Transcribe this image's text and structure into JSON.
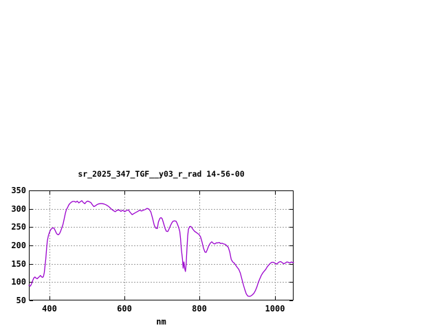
{
  "window": {
    "background": "#ffffff"
  },
  "chart_data": {
    "type": "line",
    "title": "sr_2025_347_TGF__y03_r_rad 14-56-00",
    "xlabel": "nm",
    "ylabel": "",
    "xlim": [
      345,
      1050
    ],
    "ylim": [
      50,
      350
    ],
    "xticks": [
      400,
      600,
      800,
      1000
    ],
    "yticks": [
      50,
      100,
      150,
      200,
      250,
      300,
      350
    ],
    "grid": true,
    "legend": "none",
    "line_color": "#9a00cd",
    "grid_color": "#9c9c9c",
    "axis_color": "#000000",
    "series": [
      {
        "x": [
          345,
          349,
          352,
          355,
          358,
          361,
          364,
          367,
          370,
          373,
          376,
          379,
          382,
          384,
          386,
          388,
          390,
          392,
          394,
          397,
          400,
          403,
          406,
          409,
          412,
          415,
          418,
          421,
          424,
          427,
          430,
          433,
          436,
          439,
          442,
          445,
          448,
          451,
          454,
          458,
          462,
          466,
          470,
          474,
          478,
          482,
          486,
          490,
          494,
          498,
          502,
          506,
          510,
          514,
          518,
          522,
          526,
          530,
          535,
          540,
          545,
          550,
          555,
          560,
          565,
          570,
          575,
          580,
          585,
          590,
          595,
          600,
          605,
          610,
          615,
          620,
          625,
          630,
          635,
          640,
          645,
          650,
          655,
          660,
          665,
          670,
          675,
          679,
          683,
          687,
          690,
          694,
          697,
          700,
          704,
          708,
          711,
          715,
          718,
          722,
          726,
          729,
          733,
          737,
          740,
          744,
          747,
          749,
          751,
          754,
          756,
          758,
          760,
          762,
          764,
          766,
          768,
          770,
          773,
          776,
          778,
          782,
          786,
          790,
          794,
          798,
          802,
          806,
          810,
          814,
          817,
          820,
          824,
          828,
          832,
          836,
          840,
          844,
          848,
          852,
          856,
          860,
          864,
          868,
          872,
          876,
          880,
          884,
          888,
          892,
          896,
          900,
          904,
          908,
          912,
          916,
          920,
          924,
          928,
          932,
          936,
          940,
          944,
          948,
          952,
          956,
          960,
          964,
          968,
          972,
          976,
          980,
          984,
          988,
          992,
          996,
          1000,
          1004,
          1008,
          1012,
          1016,
          1020,
          1024,
          1028,
          1032,
          1036,
          1040,
          1044,
          1048,
          1050
        ],
        "y": [
          91,
          89,
          95,
          104,
          111,
          114,
          111,
          109,
          112,
          115,
          118,
          114,
          113,
          116,
          126,
          145,
          163,
          190,
          212,
          227,
          236,
          243,
          246,
          248,
          247,
          241,
          234,
          230,
          229,
          233,
          240,
          249,
          258,
          272,
          287,
          298,
          303,
          310,
          314,
          318,
          320,
          320,
          318,
          321,
          316,
          319,
          322,
          317,
          314,
          319,
          321,
          319,
          317,
          311,
          306,
          308,
          311,
          313,
          314,
          314,
          313,
          311,
          308,
          304,
          299,
          295,
          292,
          296,
          297,
          293,
          296,
          292,
          295,
          297,
          290,
          284,
          287,
          290,
          293,
          296,
          294,
          296,
          298,
          301,
          299,
          291,
          272,
          255,
          247,
          246,
          264,
          274,
          276,
          273,
          260,
          246,
          239,
          238,
          244,
          254,
          262,
          266,
          267,
          266,
          260,
          249,
          238,
          219,
          191,
          163,
          138,
          155,
          138,
          129,
          150,
          190,
          226,
          244,
          251,
          252,
          250,
          244,
          239,
          236,
          233,
          230,
          224,
          210,
          193,
          182,
          181,
          188,
          199,
          206,
          210,
          206,
          204,
          207,
          207,
          208,
          205,
          206,
          204,
          203,
          199,
          195,
          182,
          162,
          155,
          152,
          146,
          140,
          135,
          125,
          110,
          94,
          80,
          68,
          62,
          61,
          62,
          65,
          69,
          76,
          86,
          99,
          109,
          118,
          125,
          130,
          135,
          142,
          147,
          151,
          154,
          154,
          152,
          149,
          152,
          155,
          156,
          153,
          150,
          152,
          155,
          154,
          152,
          155,
          153,
          154
        ]
      }
    ]
  }
}
